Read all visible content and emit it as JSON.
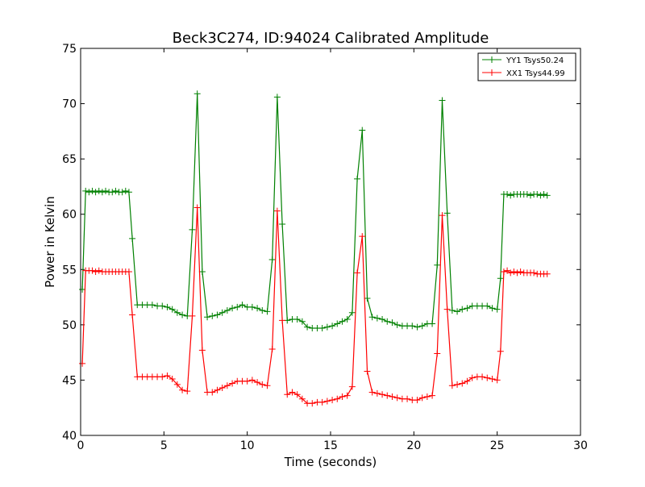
{
  "chart_data": {
    "type": "line",
    "title": "Beck3C274, ID:94024 Calibrated Amplitude",
    "xlabel": "Time (seconds)",
    "ylabel": "Power in Kelvin",
    "xlim": [
      0,
      30
    ],
    "ylim": [
      40,
      75
    ],
    "xticks": [
      0,
      5,
      10,
      15,
      20,
      25,
      30
    ],
    "yticks": [
      40,
      45,
      50,
      55,
      60,
      65,
      70,
      75
    ],
    "xtick_labels": [
      "0",
      "5",
      "10",
      "15",
      "20",
      "25",
      "30"
    ],
    "ytick_labels": [
      "40",
      "45",
      "50",
      "55",
      "60",
      "65",
      "70",
      "75"
    ],
    "grid": false,
    "legend_position": "top-right",
    "marker": "+",
    "x": [
      0.1,
      0.3,
      0.5,
      0.7,
      0.9,
      1.1,
      1.3,
      1.5,
      1.7,
      1.9,
      2.1,
      2.3,
      2.5,
      2.7,
      2.9,
      3.1,
      3.4,
      3.7,
      4.0,
      4.3,
      4.6,
      4.9,
      5.2,
      5.5,
      5.8,
      6.1,
      6.4,
      6.7,
      7.0,
      7.3,
      7.6,
      7.9,
      8.2,
      8.5,
      8.8,
      9.1,
      9.4,
      9.7,
      10.0,
      10.3,
      10.6,
      10.9,
      11.2,
      11.5,
      11.8,
      12.1,
      12.4,
      12.7,
      13.0,
      13.3,
      13.6,
      13.9,
      14.2,
      14.5,
      14.8,
      15.1,
      15.4,
      15.7,
      16.0,
      16.3,
      16.6,
      16.9,
      17.2,
      17.5,
      17.8,
      18.1,
      18.4,
      18.7,
      19.0,
      19.3,
      19.6,
      19.9,
      20.2,
      20.5,
      20.8,
      21.1,
      21.4,
      21.7,
      22.0,
      22.3,
      22.6,
      22.9,
      23.2,
      23.5,
      23.8,
      24.1,
      24.4,
      24.7,
      25.0,
      25.2,
      25.4,
      25.6,
      25.8,
      26.0,
      26.2,
      26.4,
      26.6,
      26.8,
      27.0,
      27.2,
      27.4,
      27.6,
      27.8,
      28.0
    ],
    "series": [
      {
        "name": "YY1 Tsys50.24",
        "color": "#008000",
        "values": [
          53.2,
          62.1,
          62.0,
          62.1,
          62.0,
          62.1,
          62.0,
          62.1,
          62.0,
          62.0,
          62.1,
          62.0,
          62.0,
          62.1,
          62.0,
          57.8,
          51.8,
          51.8,
          51.8,
          51.8,
          51.7,
          51.7,
          51.6,
          51.4,
          51.1,
          50.9,
          50.8,
          58.6,
          70.9,
          54.8,
          50.7,
          50.8,
          50.9,
          51.1,
          51.3,
          51.5,
          51.6,
          51.8,
          51.6,
          51.6,
          51.5,
          51.3,
          51.2,
          55.9,
          70.6,
          59.1,
          50.4,
          50.5,
          50.5,
          50.3,
          49.8,
          49.7,
          49.7,
          49.7,
          49.8,
          49.9,
          50.1,
          50.3,
          50.5,
          51.1,
          63.2,
          67.6,
          52.4,
          50.7,
          50.6,
          50.5,
          50.3,
          50.2,
          50.0,
          49.9,
          49.9,
          49.9,
          49.8,
          49.9,
          50.1,
          50.1,
          55.4,
          70.3,
          60.1,
          51.3,
          51.2,
          51.4,
          51.5,
          51.7,
          51.7,
          51.7,
          51.7,
          51.5,
          51.4,
          54.2,
          61.8,
          61.8,
          61.7,
          61.8,
          61.8,
          61.8,
          61.8,
          61.8,
          61.7,
          61.8,
          61.8,
          61.7,
          61.8,
          61.7
        ]
      },
      {
        "name": "XX1 Tsys44.99",
        "color": "#ff0000",
        "values": [
          46.5,
          54.9,
          54.9,
          54.9,
          54.8,
          54.9,
          54.8,
          54.8,
          54.8,
          54.8,
          54.8,
          54.8,
          54.8,
          54.8,
          54.8,
          50.9,
          45.3,
          45.3,
          45.3,
          45.3,
          45.3,
          45.3,
          45.4,
          45.1,
          44.6,
          44.1,
          44.0,
          50.8,
          60.6,
          47.7,
          43.9,
          43.9,
          44.1,
          44.3,
          44.5,
          44.7,
          44.9,
          44.9,
          44.9,
          45.0,
          44.8,
          44.6,
          44.5,
          47.8,
          60.3,
          50.4,
          43.7,
          43.9,
          43.7,
          43.3,
          42.9,
          42.9,
          43.0,
          43.0,
          43.1,
          43.2,
          43.3,
          43.5,
          43.6,
          44.4,
          54.7,
          58.0,
          45.8,
          43.9,
          43.8,
          43.7,
          43.6,
          43.5,
          43.4,
          43.3,
          43.3,
          43.2,
          43.2,
          43.4,
          43.5,
          43.6,
          47.4,
          59.9,
          51.4,
          44.5,
          44.6,
          44.7,
          44.9,
          45.2,
          45.3,
          45.3,
          45.2,
          45.1,
          45.0,
          47.6,
          54.8,
          54.9,
          54.7,
          54.8,
          54.7,
          54.8,
          54.7,
          54.7,
          54.7,
          54.7,
          54.6,
          54.6,
          54.6,
          54.6
        ]
      }
    ]
  }
}
